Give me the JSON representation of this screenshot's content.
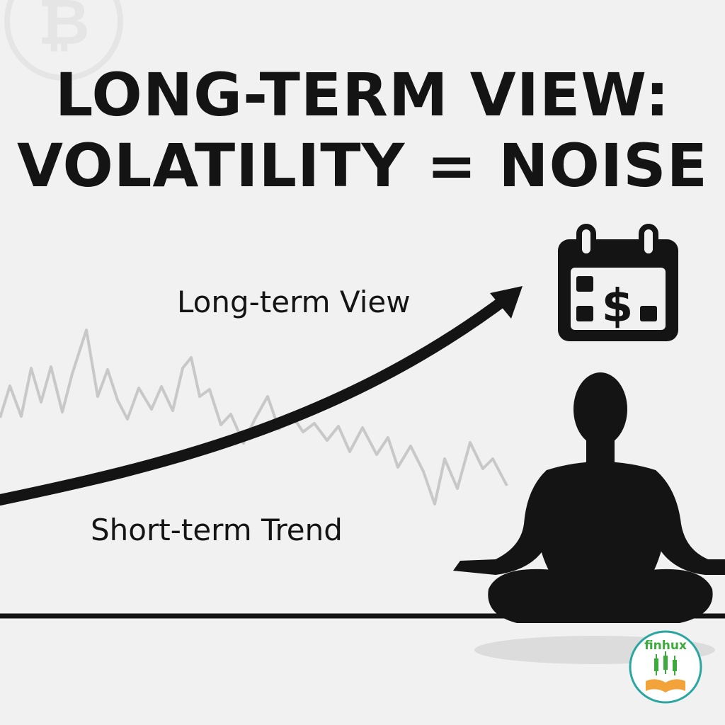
{
  "title": {
    "line1": "LONG-TERM VIEW:",
    "line2": "VOLATILITY = NOISE"
  },
  "labels": {
    "long_term": "Long-term View",
    "short_term": "Short-term Trend"
  },
  "calendar": {
    "symbol": "$"
  },
  "logo": {
    "text": "finhux"
  },
  "icons": [
    "bitcoin-icon",
    "calendar-dollar-icon",
    "meditating-person-icon",
    "finhux-logo-icon"
  ],
  "colors": {
    "background": "#f1f1f1",
    "ink": "#141414",
    "noise_line": "#c8c8c8",
    "logo_green": "#3cab3c",
    "logo_orange": "#f2a33a",
    "logo_ring": "#2aa6a0"
  }
}
